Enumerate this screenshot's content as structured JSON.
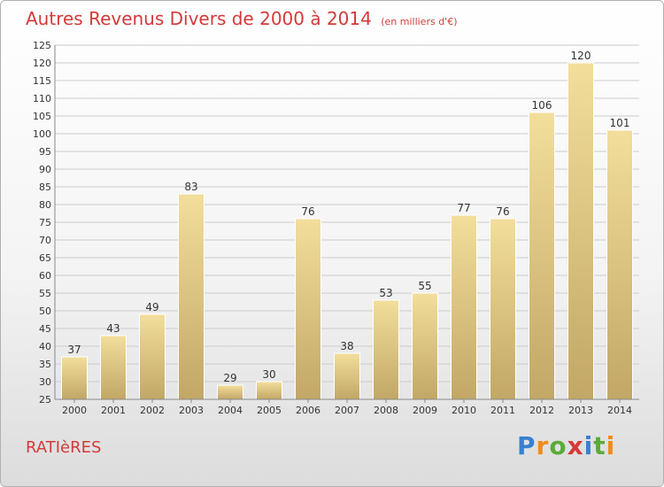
{
  "header": {
    "title": "Autres Revenus Divers de 2000 à 2014",
    "subtitle": "(en milliers d'€)"
  },
  "footer": {
    "commune": "RATIèRES",
    "logo_letters": [
      "P",
      "r",
      "o",
      "x",
      "i",
      "t",
      "i"
    ],
    "logo_colors": [
      "#3a7fd0",
      "#f28c1a",
      "#5aab3a",
      "#d33a3a",
      "#3a7fd0",
      "#5aab3a",
      "#f28c1a"
    ]
  },
  "colors": {
    "bar_top": "#f3de9c",
    "bar_bottom": "#c2a766",
    "bar_edge": "#ffffff",
    "grid": "#cccccc",
    "axis_text": "#333333",
    "title": "#d33a3a"
  },
  "chart_data": {
    "type": "bar",
    "title": "Autres Revenus Divers de 2000 à 2014",
    "xlabel": "",
    "ylabel": "",
    "categories": [
      "2000",
      "2001",
      "2002",
      "2003",
      "2004",
      "2005",
      "2006",
      "2007",
      "2008",
      "2009",
      "2010",
      "2011",
      "2012",
      "2013",
      "2014"
    ],
    "values": [
      37,
      43,
      49,
      83,
      29,
      30,
      76,
      38,
      53,
      55,
      77,
      76,
      106,
      120,
      101
    ],
    "ylim": [
      25,
      125
    ],
    "yticks": [
      25,
      30,
      35,
      40,
      45,
      50,
      55,
      60,
      65,
      70,
      75,
      80,
      85,
      90,
      95,
      100,
      105,
      110,
      115,
      120,
      125
    ],
    "grid": true,
    "legend": "none"
  }
}
